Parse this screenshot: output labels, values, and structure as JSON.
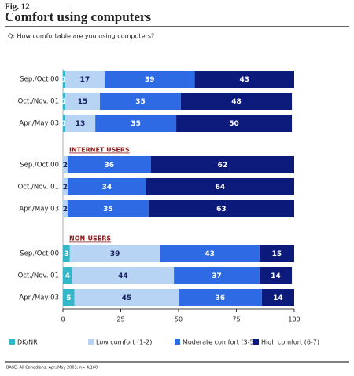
{
  "chart_data": {
    "type": "stacked-bar-h",
    "fig": "Fig. 12",
    "title": "Comfort using computers",
    "subtitle": "Q:  How comfortable are you using computers?",
    "series": [
      {
        "name": "DK/NR",
        "color": "#35b6c9"
      },
      {
        "name": "Low comfort (1-2)",
        "color": "#b7d4f4"
      },
      {
        "name": "Moderate comfort (3-5)",
        "color": "#2e6ae4"
      },
      {
        "name": "High comfort (6-7)",
        "color": "#0c1a7c"
      }
    ],
    "groups": [
      {
        "categories": [
          "Sep./Oct 00",
          "Oct./Nov. 01",
          "Apr./May 03"
        ],
        "values": [
          [
            1,
            17,
            39,
            43
          ],
          [
            1,
            15,
            35,
            48
          ],
          [
            1,
            13,
            35,
            50
          ]
        ]
      },
      {
        "label": "INTERNET USERS",
        "categories": [
          "Sep./Oct 00",
          "Oct./Nov. 01",
          "Apr./May 03"
        ],
        "values": [
          [
            0,
            2,
            36,
            62
          ],
          [
            0,
            2,
            34,
            64
          ],
          [
            0,
            2,
            35,
            63
          ]
        ]
      },
      {
        "label": "NON-USERS",
        "categories": [
          "Sep./Oct 00",
          "Oct./Nov. 01",
          "Apr./May 03"
        ],
        "values": [
          [
            3,
            39,
            43,
            15
          ],
          [
            4,
            44,
            37,
            14
          ],
          [
            5,
            45,
            36,
            14
          ]
        ]
      }
    ],
    "xlim": [
      0,
      100
    ],
    "xticks": [
      0,
      25,
      50,
      75,
      100
    ],
    "note": "BASE: All Canadians, Apr./May 2003, n= 4,160"
  }
}
